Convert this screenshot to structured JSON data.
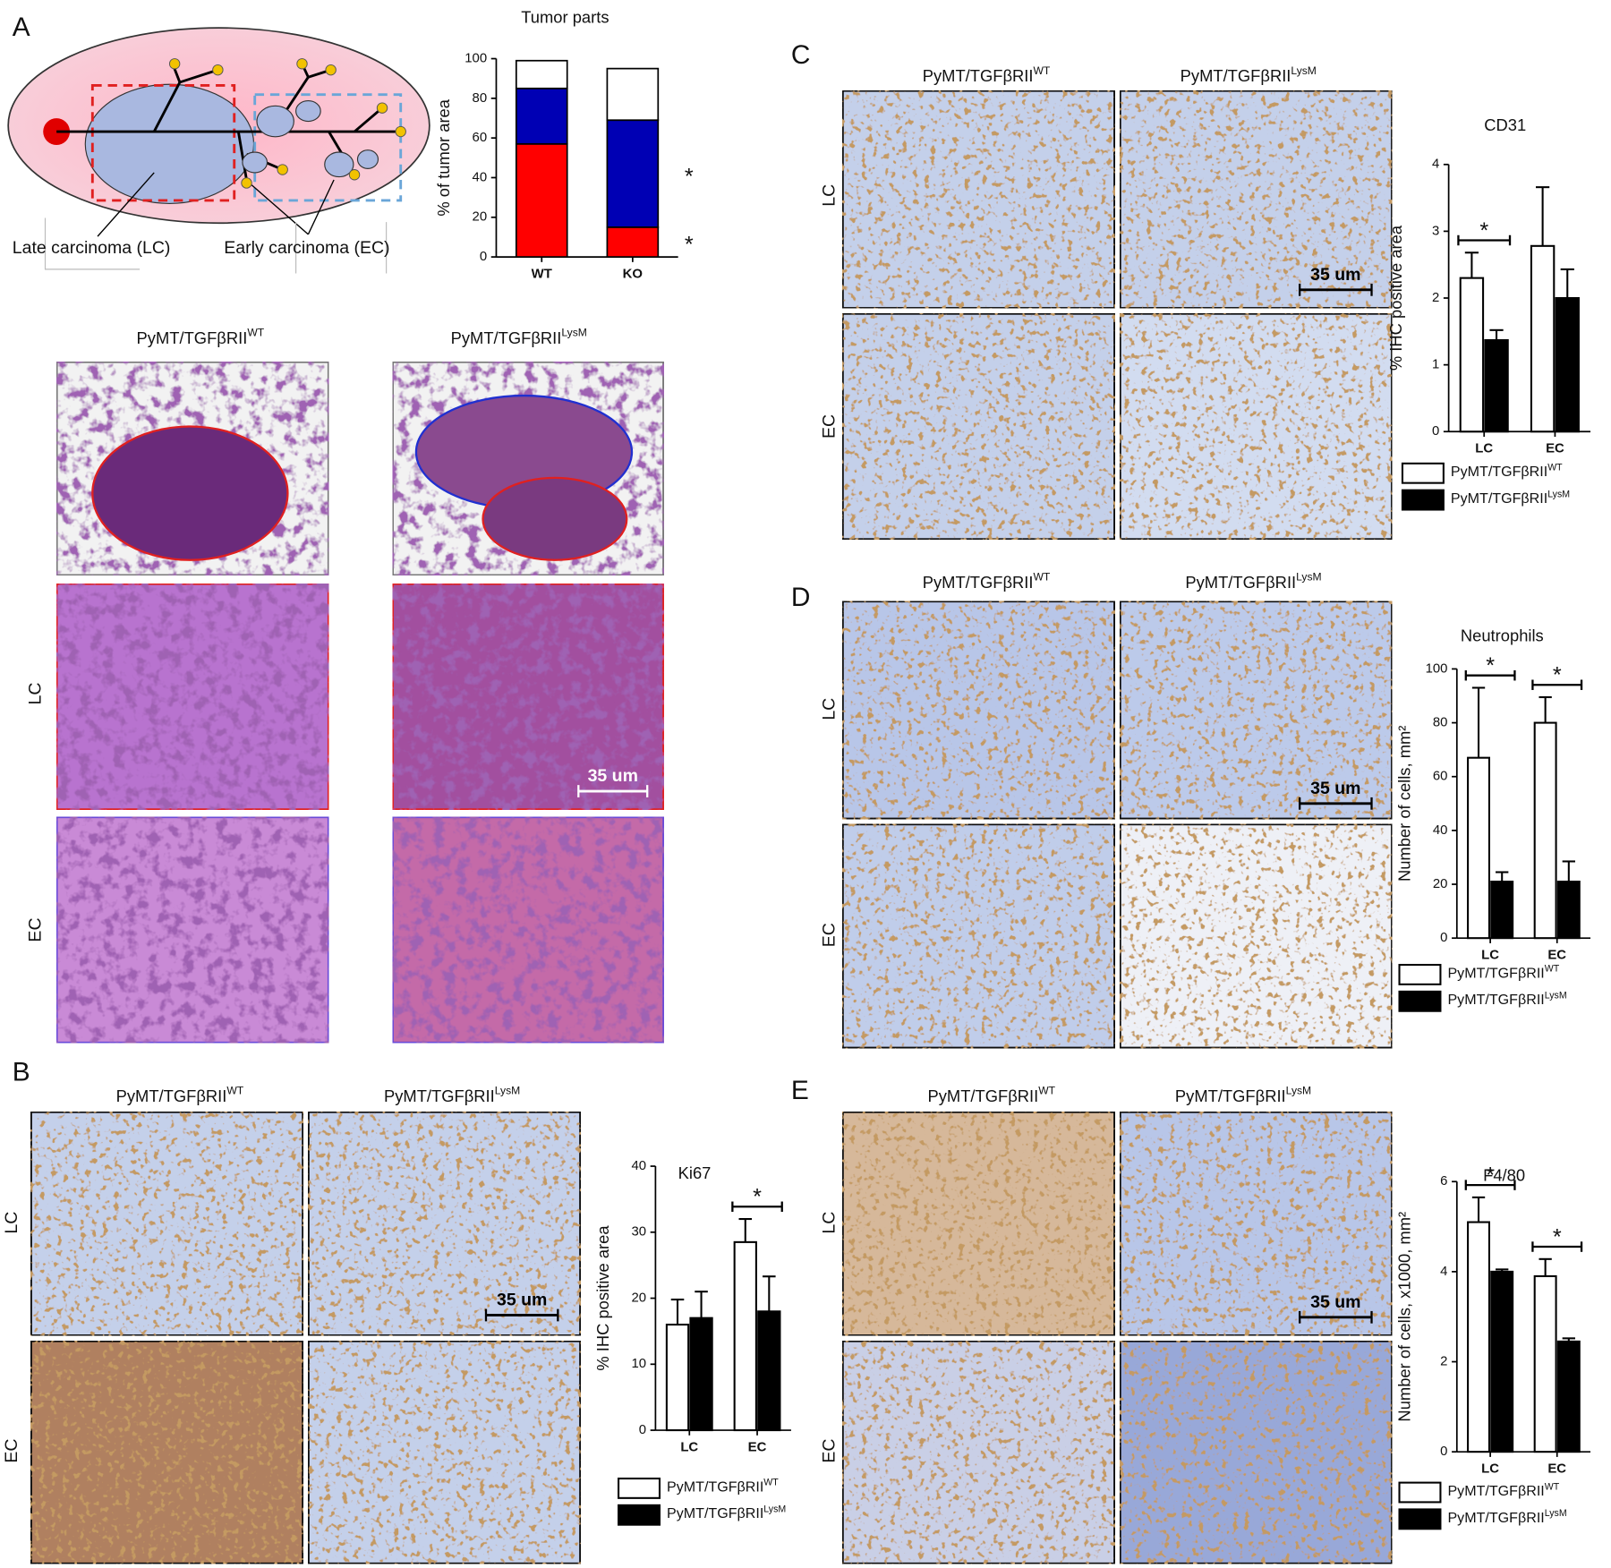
{
  "panel_letters": [
    "A",
    "B",
    "C",
    "D",
    "E"
  ],
  "genotype": {
    "base": "PyMT/TGFβRII",
    "wt": "WT",
    "lysm": "LysM"
  },
  "row_labels": [
    "LC",
    "EC"
  ],
  "scale_bar": "35 um",
  "diagram": {
    "late": "Late carcinoma (LC)",
    "early": "Early carcinoma (EC)"
  },
  "chart_data": [
    {
      "type": "bar",
      "stacked": true,
      "title": "Tumor parts",
      "y_label": "% of tumor area",
      "categories": [
        "WT",
        "KO"
      ],
      "series": [
        {
          "color": "#ff0000",
          "values": [
            57,
            15
          ],
          "marked": [
            false,
            true
          ]
        },
        {
          "color": "#0000b4",
          "values": [
            28,
            54
          ],
          "marked": [
            false,
            true
          ]
        },
        {
          "color": "#ffffff",
          "values": [
            14,
            26
          ]
        }
      ],
      "significance_label": "*",
      "ylim": [
        0,
        100
      ],
      "yticks": [
        0,
        20,
        40,
        60,
        80,
        100
      ]
    },
    {
      "type": "bar",
      "title": "Ki67",
      "y_label": "% IHC positive area",
      "categories": [
        "LC",
        "EC"
      ],
      "series": [
        {
          "name": "PyMT/TGFβRII",
          "superscript": "WT",
          "color": "#ffffff",
          "values": [
            16,
            28.5
          ],
          "error": [
            3.8,
            3.5
          ]
        },
        {
          "name": "PyMT/TGFβRII",
          "superscript": "LysM",
          "color": "#000000",
          "values": [
            17,
            18
          ],
          "error": [
            4,
            5.3
          ]
        }
      ],
      "significant": [
        false,
        true
      ],
      "significance_label": "*",
      "ylim": [
        0,
        40
      ],
      "yticks": [
        0,
        10,
        20,
        30,
        40
      ]
    },
    {
      "type": "bar",
      "title": "CD31",
      "y_label": "% IHC positive area",
      "categories": [
        "LC",
        "EC"
      ],
      "series": [
        {
          "name": "PyMT/TGFβRII",
          "superscript": "WT",
          "color": "#ffffff",
          "values": [
            2.3,
            2.78
          ],
          "error": [
            0.38,
            0.88
          ]
        },
        {
          "name": "PyMT/TGFβRII",
          "superscript": "LysM",
          "color": "#000000",
          "values": [
            1.37,
            2.0
          ],
          "error": [
            0.15,
            0.43
          ]
        }
      ],
      "significant": [
        true,
        false
      ],
      "significance_label": "*",
      "ylim": [
        0,
        4
      ],
      "yticks": [
        0,
        1,
        2,
        3,
        4
      ]
    },
    {
      "type": "bar",
      "title": "Neutrophils",
      "y_label": "Number of cells, mm²",
      "categories": [
        "LC",
        "EC"
      ],
      "series": [
        {
          "name": "PyMT/TGFβRII",
          "superscript": "WT",
          "color": "#ffffff",
          "values": [
            67,
            80
          ],
          "error": [
            26,
            9.5
          ]
        },
        {
          "name": "PyMT/TGFβRII",
          "superscript": "LysM",
          "color": "#000000",
          "values": [
            21,
            21
          ],
          "error": [
            3.5,
            7.5
          ]
        }
      ],
      "significant": [
        true,
        true
      ],
      "significance_label": "*",
      "ylim": [
        0,
        100
      ],
      "yticks": [
        0,
        20,
        40,
        60,
        80,
        100
      ]
    },
    {
      "type": "bar",
      "title": "F4/80",
      "y_label": "Number of cells, x1000, mm²",
      "categories": [
        "LC",
        "EC"
      ],
      "series": [
        {
          "name": "PyMT/TGFβRII",
          "superscript": "WT",
          "color": "#ffffff",
          "values": [
            5.1,
            3.9
          ],
          "error": [
            0.55,
            0.38
          ]
        },
        {
          "name": "PyMT/TGFβRII",
          "superscript": "LysM",
          "color": "#000000",
          "values": [
            4.0,
            2.45
          ],
          "error": [
            0.05,
            0.07
          ]
        }
      ],
      "significant": [
        true,
        true
      ],
      "significance_label": "*",
      "ylim": [
        0,
        6
      ],
      "yticks": [
        0,
        2,
        4,
        6
      ]
    }
  ]
}
